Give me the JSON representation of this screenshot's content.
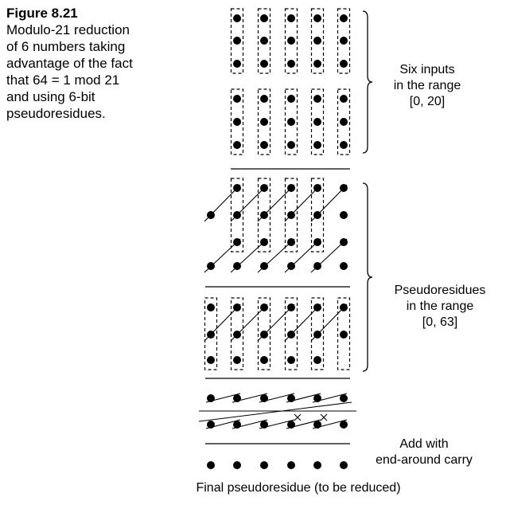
{
  "caption": {
    "title": "Figure 8.21",
    "lines": [
      "Modulo-21 reduction",
      "of 6 numbers taking",
      "advantage of the fact",
      "that 64 = 1 mod 21",
      "and using 6-bit",
      "pseudoresidues."
    ]
  },
  "labels": {
    "inputs": [
      "Six inputs",
      "in the range",
      "[0, 20]"
    ],
    "pseudo": [
      "Pseudoresidues",
      "in the range",
      "[0, 63]"
    ],
    "add": [
      "Add with",
      "end-around carry"
    ],
    "final": "Final pseudoresidue (to be reduced)"
  }
}
